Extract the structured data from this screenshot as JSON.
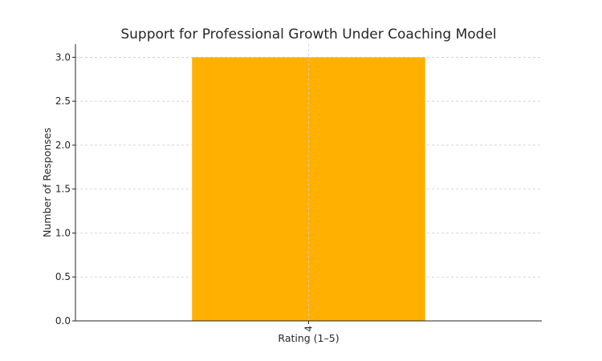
{
  "chart_data": {
    "type": "bar",
    "title": "Support for Professional Growth Under Coaching Model",
    "xlabel": "Rating (1–5)",
    "ylabel": "Number of Responses",
    "categories": [
      "4"
    ],
    "values": [
      3
    ],
    "ylim": [
      0,
      3.15
    ],
    "yticks": [
      "0.0",
      "0.5",
      "1.0",
      "1.5",
      "2.0",
      "2.5",
      "3.0"
    ],
    "grid": true,
    "bar_color": "#FFB000",
    "tick_label_rotation": "vertical"
  }
}
